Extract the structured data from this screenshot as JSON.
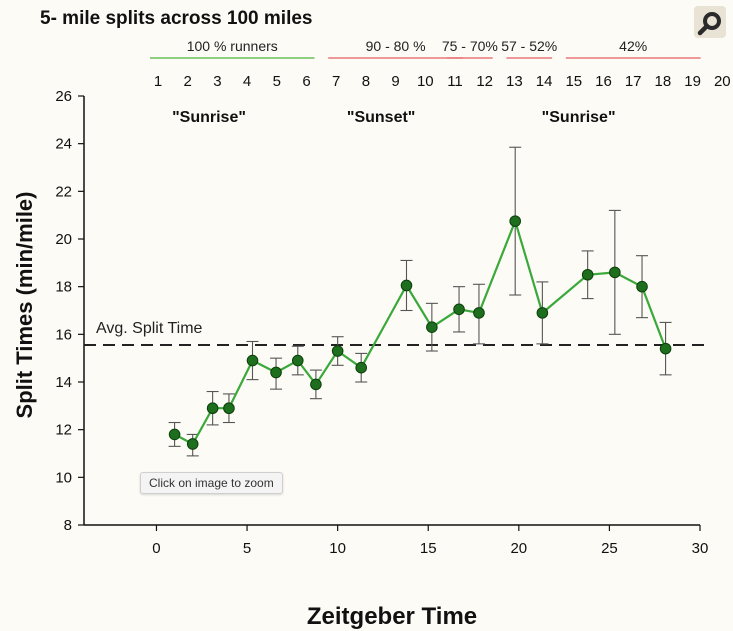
{
  "chart_data": {
    "type": "line",
    "title": "5- mile splits across 100 miles",
    "xlabel": "Zeitgeber Time",
    "ylabel": "Split Times  (min/mile)",
    "xlim": [
      -4,
      30
    ],
    "ylim": [
      8,
      26
    ],
    "xticks": [
      0,
      5,
      10,
      15,
      20,
      25,
      30
    ],
    "yticks": [
      8,
      10,
      12,
      14,
      16,
      18,
      20,
      22,
      24,
      26
    ],
    "grid": false,
    "line_color": "#3aa83a",
    "marker_color": "#1d6e1d",
    "series": [
      {
        "x": [
          1.0,
          2.0,
          3.1,
          4.0,
          5.3,
          6.6,
          7.8,
          8.8,
          10.0,
          11.3,
          13.8,
          15.2,
          16.7,
          17.8,
          19.8,
          21.3,
          23.8,
          25.3,
          26.8,
          28.1
        ],
        "y": [
          11.8,
          11.4,
          12.9,
          12.9,
          14.9,
          14.4,
          14.9,
          13.9,
          15.3,
          14.6,
          18.05,
          16.3,
          17.05,
          16.9,
          20.75,
          16.9,
          18.5,
          18.6,
          18.0,
          15.4
        ],
        "y_upper": [
          12.3,
          11.8,
          13.6,
          13.5,
          15.7,
          15.0,
          15.5,
          14.5,
          15.9,
          15.2,
          19.1,
          17.3,
          18.0,
          18.1,
          23.85,
          18.2,
          19.5,
          21.2,
          19.3,
          16.5
        ],
        "y_lower": [
          11.3,
          10.9,
          12.2,
          12.3,
          14.1,
          13.7,
          14.3,
          13.3,
          14.7,
          14.0,
          17.0,
          15.3,
          16.1,
          15.6,
          17.65,
          15.6,
          17.5,
          16.0,
          16.7,
          14.3
        ]
      }
    ],
    "reference_line": {
      "y": 15.55,
      "label": "Avg. Split Time"
    },
    "phase_labels": [
      {
        "label": "\"Sunrise\"",
        "x": 2.9
      },
      {
        "label": "\"Sunset\"",
        "x": 12.4
      },
      {
        "label": "\"Sunrise\"",
        "x": 23.3
      }
    ],
    "mile_splits": [
      "1",
      "2",
      "3",
      "4",
      "5",
      "6",
      "7",
      "8",
      "9",
      "10",
      "11",
      "12",
      "13",
      "14",
      "15",
      "16",
      "17",
      "18",
      "19",
      "20"
    ],
    "runner_groups": [
      {
        "label": "100 % runners",
        "from": 1,
        "to": 6,
        "color": "#6bbf59"
      },
      {
        "label": "90 - 80 %",
        "from": 7,
        "to": 11,
        "color": "#e8787a"
      },
      {
        "label": "75 - 70%",
        "from": 11,
        "to": 12,
        "color": "#e8787a"
      },
      {
        "label": "57 - 52%",
        "from": 13,
        "to": 14,
        "color": "#e8787a"
      },
      {
        "label": "42%",
        "from": 15,
        "to": 19,
        "color": "#e8787a"
      }
    ]
  },
  "ui": {
    "zoom_tooltip": "Click on image to zoom",
    "zoom_icon": "magnifier-icon"
  }
}
